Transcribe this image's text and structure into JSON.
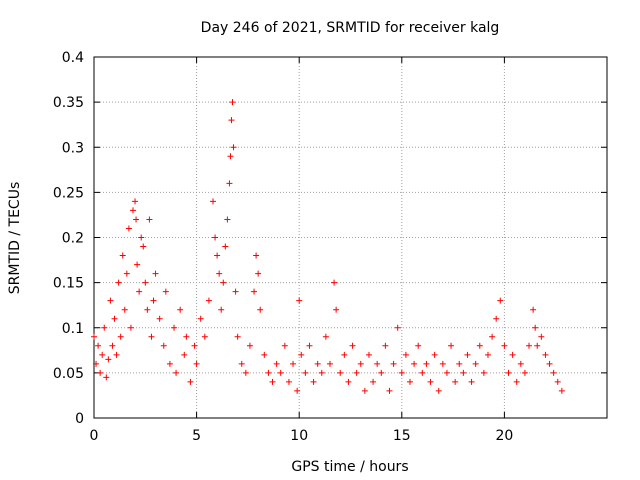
{
  "chart_data": {
    "type": "scatter",
    "title": "Day 246 of 2021, SRMTID for receiver kalg",
    "xlabel": "GPS time / hours",
    "ylabel": "SRMTID / TECUs",
    "xlim": [
      0,
      25
    ],
    "ylim": [
      0,
      0.4
    ],
    "xticks": [
      0,
      5,
      10,
      15,
      20
    ],
    "xtick_labels": [
      "0",
      "5",
      "10",
      "15",
      "20"
    ],
    "yticks": [
      0,
      0.05,
      0.1,
      0.15,
      0.2,
      0.25,
      0.3,
      0.35,
      0.4
    ],
    "ytick_labels": [
      "0",
      "0.05",
      "0.1",
      "0.15",
      "0.2",
      "0.25",
      "0.3",
      "0.35",
      "0.4"
    ],
    "grid": true,
    "marker": "plus",
    "color": "#ff0000",
    "series": [
      {
        "name": "SRMTID",
        "points": [
          [
            0.0,
            0.09
          ],
          [
            0.1,
            0.06
          ],
          [
            0.2,
            0.08
          ],
          [
            0.3,
            0.05
          ],
          [
            0.4,
            0.07
          ],
          [
            0.5,
            0.1
          ],
          [
            0.6,
            0.045
          ],
          [
            0.7,
            0.065
          ],
          [
            0.8,
            0.13
          ],
          [
            0.9,
            0.08
          ],
          [
            1.0,
            0.11
          ],
          [
            1.1,
            0.07
          ],
          [
            1.2,
            0.15
          ],
          [
            1.3,
            0.09
          ],
          [
            1.4,
            0.18
          ],
          [
            1.5,
            0.12
          ],
          [
            1.6,
            0.16
          ],
          [
            1.7,
            0.21
          ],
          [
            1.8,
            0.1
          ],
          [
            1.9,
            0.23
          ],
          [
            2.0,
            0.24
          ],
          [
            2.05,
            0.22
          ],
          [
            2.1,
            0.17
          ],
          [
            2.2,
            0.14
          ],
          [
            2.3,
            0.2
          ],
          [
            2.4,
            0.19
          ],
          [
            2.5,
            0.15
          ],
          [
            2.6,
            0.12
          ],
          [
            2.7,
            0.22
          ],
          [
            2.8,
            0.09
          ],
          [
            2.9,
            0.13
          ],
          [
            3.0,
            0.16
          ],
          [
            3.2,
            0.11
          ],
          [
            3.4,
            0.08
          ],
          [
            3.5,
            0.14
          ],
          [
            3.7,
            0.06
          ],
          [
            3.9,
            0.1
          ],
          [
            4.0,
            0.05
          ],
          [
            4.2,
            0.12
          ],
          [
            4.4,
            0.07
          ],
          [
            4.5,
            0.09
          ],
          [
            4.7,
            0.04
          ],
          [
            4.9,
            0.08
          ],
          [
            5.0,
            0.06
          ],
          [
            5.2,
            0.11
          ],
          [
            5.4,
            0.09
          ],
          [
            5.6,
            0.13
          ],
          [
            5.8,
            0.24
          ],
          [
            5.9,
            0.2
          ],
          [
            6.0,
            0.18
          ],
          [
            6.1,
            0.16
          ],
          [
            6.2,
            0.12
          ],
          [
            6.3,
            0.15
          ],
          [
            6.4,
            0.19
          ],
          [
            6.5,
            0.22
          ],
          [
            6.6,
            0.26
          ],
          [
            6.65,
            0.29
          ],
          [
            6.7,
            0.33
          ],
          [
            6.75,
            0.35
          ],
          [
            6.8,
            0.3
          ],
          [
            6.9,
            0.14
          ],
          [
            7.0,
            0.09
          ],
          [
            7.2,
            0.06
          ],
          [
            7.4,
            0.05
          ],
          [
            7.6,
            0.08
          ],
          [
            7.8,
            0.14
          ],
          [
            7.9,
            0.18
          ],
          [
            8.0,
            0.16
          ],
          [
            8.1,
            0.12
          ],
          [
            8.3,
            0.07
          ],
          [
            8.5,
            0.05
          ],
          [
            8.7,
            0.04
          ],
          [
            8.9,
            0.06
          ],
          [
            9.1,
            0.05
          ],
          [
            9.3,
            0.08
          ],
          [
            9.5,
            0.04
          ],
          [
            9.7,
            0.06
          ],
          [
            9.9,
            0.03
          ],
          [
            10.0,
            0.13
          ],
          [
            10.1,
            0.07
          ],
          [
            10.3,
            0.05
          ],
          [
            10.5,
            0.08
          ],
          [
            10.7,
            0.04
          ],
          [
            10.9,
            0.06
          ],
          [
            11.1,
            0.05
          ],
          [
            11.3,
            0.09
          ],
          [
            11.5,
            0.06
          ],
          [
            11.7,
            0.15
          ],
          [
            11.8,
            0.12
          ],
          [
            12.0,
            0.05
          ],
          [
            12.2,
            0.07
          ],
          [
            12.4,
            0.04
          ],
          [
            12.6,
            0.08
          ],
          [
            12.8,
            0.05
          ],
          [
            13.0,
            0.06
          ],
          [
            13.2,
            0.03
          ],
          [
            13.4,
            0.07
          ],
          [
            13.6,
            0.04
          ],
          [
            13.8,
            0.06
          ],
          [
            14.0,
            0.05
          ],
          [
            14.2,
            0.08
          ],
          [
            14.4,
            0.03
          ],
          [
            14.6,
            0.06
          ],
          [
            14.8,
            0.1
          ],
          [
            15.0,
            0.05
          ],
          [
            15.2,
            0.07
          ],
          [
            15.4,
            0.04
          ],
          [
            15.6,
            0.06
          ],
          [
            15.8,
            0.08
          ],
          [
            16.0,
            0.05
          ],
          [
            16.2,
            0.06
          ],
          [
            16.4,
            0.04
          ],
          [
            16.6,
            0.07
          ],
          [
            16.8,
            0.03
          ],
          [
            17.0,
            0.06
          ],
          [
            17.2,
            0.05
          ],
          [
            17.4,
            0.08
          ],
          [
            17.6,
            0.04
          ],
          [
            17.8,
            0.06
          ],
          [
            18.0,
            0.05
          ],
          [
            18.2,
            0.07
          ],
          [
            18.4,
            0.04
          ],
          [
            18.6,
            0.06
          ],
          [
            18.8,
            0.08
          ],
          [
            19.0,
            0.05
          ],
          [
            19.2,
            0.07
          ],
          [
            19.4,
            0.09
          ],
          [
            19.6,
            0.11
          ],
          [
            19.8,
            0.13
          ],
          [
            20.0,
            0.08
          ],
          [
            20.2,
            0.05
          ],
          [
            20.4,
            0.07
          ],
          [
            20.6,
            0.04
          ],
          [
            20.8,
            0.06
          ],
          [
            21.0,
            0.05
          ],
          [
            21.2,
            0.08
          ],
          [
            21.4,
            0.12
          ],
          [
            21.5,
            0.1
          ],
          [
            21.6,
            0.08
          ],
          [
            21.8,
            0.09
          ],
          [
            22.0,
            0.07
          ],
          [
            22.2,
            0.06
          ],
          [
            22.4,
            0.05
          ],
          [
            22.6,
            0.04
          ],
          [
            22.8,
            0.03
          ]
        ]
      }
    ]
  }
}
